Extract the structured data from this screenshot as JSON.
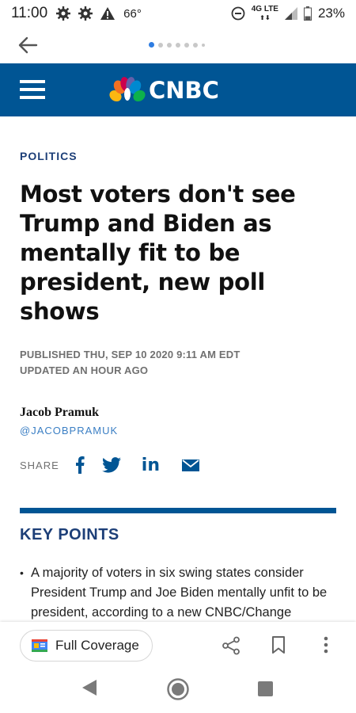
{
  "status_bar": {
    "time": "11:00",
    "temperature": "66°",
    "network": "4G LTE",
    "battery": "23%"
  },
  "header": {
    "brand": "CNBC"
  },
  "article": {
    "kicker": "POLITICS",
    "headline": "Most voters don't see Trump and Biden as mentally fit to be president, new poll shows",
    "published": "PUBLISHED THU, SEP 10 2020 9:11 AM EDT",
    "updated": "UPDATED AN HOUR AGO",
    "author": "Jacob Pramuk",
    "handle": "@JACOBPRAMUK",
    "share_label": "SHARE"
  },
  "key_points": {
    "title": "KEY POINTS",
    "items": [
      "A majority of voters in six swing states consider President Trump and Joe Biden mentally unfit to be president, according to a new CNBC/Change Research poll."
    ]
  },
  "bottom_bar": {
    "full_coverage_label": "Full Coverage"
  },
  "colors": {
    "cnbc_blue": "#005594",
    "kicker_blue": "#1d3f78",
    "handle_blue": "#3b7fc4"
  }
}
